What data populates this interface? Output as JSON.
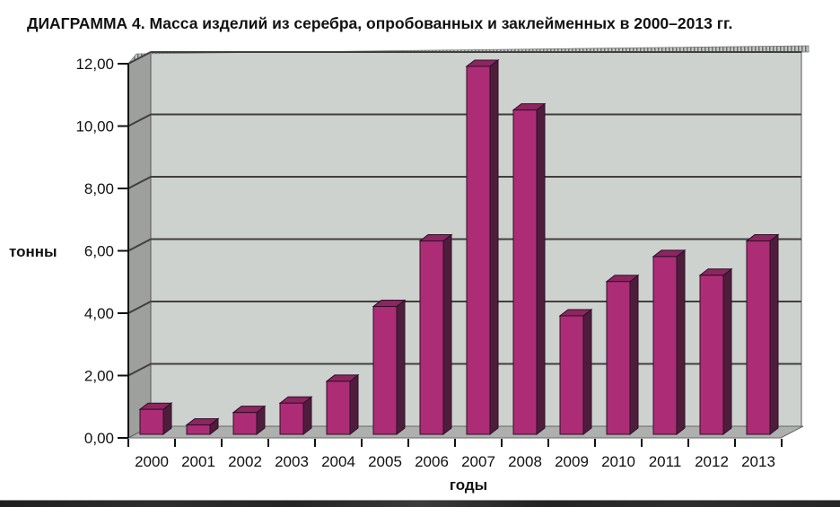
{
  "chart_data": {
    "type": "bar",
    "title": "ДИАГРАММА 4. Масса изделий из серебра, опробованных и заклейменных в 2000–2013 гг.",
    "xlabel": "годы",
    "ylabel": "тонны",
    "categories": [
      "2000",
      "2001",
      "2002",
      "2003",
      "2004",
      "2005",
      "2006",
      "2007",
      "2008",
      "2009",
      "2010",
      "2011",
      "2012",
      "2013"
    ],
    "values": [
      0.8,
      0.3,
      0.7,
      1.0,
      1.7,
      4.1,
      6.2,
      11.8,
      10.4,
      3.8,
      4.9,
      5.7,
      5.1,
      6.2
    ],
    "ylim": [
      0,
      12
    ],
    "ytick_step": 2,
    "ytick_labels": [
      "0,00",
      "2,00",
      "4,00",
      "6,00",
      "8,00",
      "10,00",
      "12,00"
    ],
    "grid": true,
    "legend": false,
    "style": "3d-column",
    "colors": {
      "bar_front": "#ac2d76",
      "bar_side": "#4f1d3c",
      "bar_top": "#8d2560",
      "bar_outline": "#2e0f28",
      "wall": "#ced2ce",
      "side_wall": "#9da09d",
      "floor": "#adb0ad",
      "gridline": "#3f3f3f",
      "axis": "#111111",
      "hatch_dark": "#6a6d6a",
      "hatch_light": "#c2c6c2"
    }
  }
}
